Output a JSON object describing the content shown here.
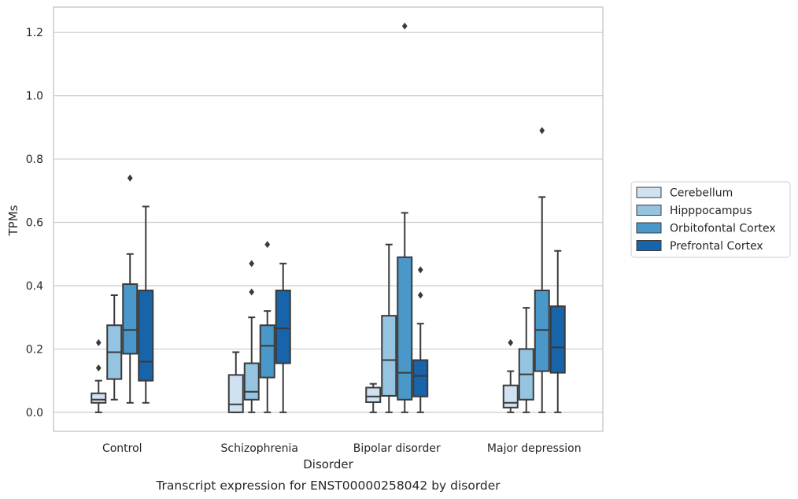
{
  "chart_data": {
    "type": "box",
    "title": "",
    "caption": "Transcript expression for ENST00000258042 by disorder",
    "xlabel": "Disorder",
    "ylabel": "TPMs",
    "ylim": [
      -0.06,
      1.28
    ],
    "yticks": [
      0.0,
      0.2,
      0.4,
      0.6,
      0.8,
      1.0,
      1.2
    ],
    "ytick_labels": [
      "0.0",
      "0.2",
      "0.4",
      "0.6",
      "0.8",
      "1.0",
      "1.2"
    ],
    "grid": "horizontal",
    "legend_position": "right",
    "categories": [
      "Control",
      "Schizophrenia",
      "Bipolar disorder",
      "Major depression"
    ],
    "series": [
      {
        "name": "Cerebellum",
        "color": "#d0e1f2",
        "boxes": [
          {
            "whislo": 0.0,
            "q1": 0.03,
            "med": 0.04,
            "q3": 0.06,
            "whishi": 0.1,
            "fliers": [
              0.14,
              0.22
            ]
          },
          {
            "whislo": 0.0,
            "q1": 0.0,
            "med": 0.025,
            "q3": 0.118,
            "whishi": 0.19,
            "fliers": []
          },
          {
            "whislo": 0.0,
            "q1": 0.032,
            "med": 0.05,
            "q3": 0.078,
            "whishi": 0.09,
            "fliers": []
          },
          {
            "whislo": 0.0,
            "q1": 0.015,
            "med": 0.03,
            "q3": 0.085,
            "whishi": 0.13,
            "fliers": [
              0.22
            ]
          }
        ]
      },
      {
        "name": "Hipppocampus",
        "color": "#94c4df",
        "boxes": [
          {
            "whislo": 0.04,
            "q1": 0.105,
            "med": 0.19,
            "q3": 0.275,
            "whishi": 0.37,
            "fliers": []
          },
          {
            "whislo": 0.0,
            "q1": 0.04,
            "med": 0.065,
            "q3": 0.155,
            "whishi": 0.3,
            "fliers": [
              0.38,
              0.47
            ]
          },
          {
            "whislo": 0.0,
            "q1": 0.052,
            "med": 0.165,
            "q3": 0.305,
            "whishi": 0.53,
            "fliers": []
          },
          {
            "whislo": 0.0,
            "q1": 0.04,
            "med": 0.12,
            "q3": 0.2,
            "whishi": 0.33,
            "fliers": []
          }
        ]
      },
      {
        "name": "Orbitofontal Cortex",
        "color": "#4a98c9",
        "boxes": [
          {
            "whislo": 0.03,
            "q1": 0.185,
            "med": 0.26,
            "q3": 0.405,
            "whishi": 0.5,
            "fliers": [
              0.74
            ]
          },
          {
            "whislo": 0.0,
            "q1": 0.11,
            "med": 0.21,
            "q3": 0.275,
            "whishi": 0.32,
            "fliers": [
              0.53
            ]
          },
          {
            "whislo": 0.0,
            "q1": 0.04,
            "med": 0.125,
            "q3": 0.49,
            "whishi": 0.63,
            "fliers": [
              1.22
            ]
          },
          {
            "whislo": 0.0,
            "q1": 0.13,
            "med": 0.26,
            "q3": 0.385,
            "whishi": 0.68,
            "fliers": [
              0.89
            ]
          }
        ]
      },
      {
        "name": "Prefrontal Cortex",
        "color": "#1764ab",
        "boxes": [
          {
            "whislo": 0.03,
            "q1": 0.1,
            "med": 0.16,
            "q3": 0.385,
            "whishi": 0.65,
            "fliers": []
          },
          {
            "whislo": 0.0,
            "q1": 0.155,
            "med": 0.265,
            "q3": 0.385,
            "whishi": 0.47,
            "fliers": []
          },
          {
            "whislo": 0.0,
            "q1": 0.05,
            "med": 0.115,
            "q3": 0.165,
            "whishi": 0.28,
            "fliers": [
              0.37,
              0.45
            ]
          },
          {
            "whislo": 0.0,
            "q1": 0.125,
            "med": 0.205,
            "q3": 0.335,
            "whishi": 0.51,
            "fliers": []
          }
        ]
      }
    ]
  }
}
